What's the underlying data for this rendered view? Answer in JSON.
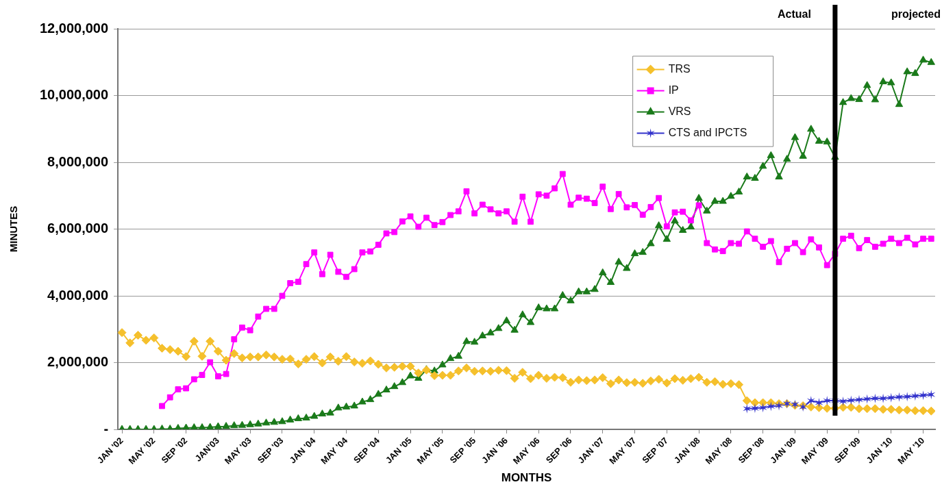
{
  "chart_data": {
    "type": "line",
    "xlabel": "MONTHS",
    "ylabel": "MINUTES",
    "x": [
      "2002-01",
      "2002-02",
      "2002-03",
      "2002-04",
      "2002-05",
      "2002-06",
      "2002-07",
      "2002-08",
      "2002-09",
      "2002-10",
      "2002-11",
      "2002-12",
      "2003-01",
      "2003-02",
      "2003-03",
      "2003-04",
      "2003-05",
      "2003-06",
      "2003-07",
      "2003-08",
      "2003-09",
      "2003-10",
      "2003-11",
      "2003-12",
      "2004-01",
      "2004-02",
      "2004-03",
      "2004-04",
      "2004-05",
      "2004-06",
      "2004-07",
      "2004-08",
      "2004-09",
      "2004-10",
      "2004-11",
      "2004-12",
      "2005-01",
      "2005-02",
      "2005-03",
      "2005-04",
      "2005-05",
      "2005-06",
      "2005-07",
      "2005-08",
      "2005-09",
      "2005-10",
      "2005-11",
      "2005-12",
      "2006-01",
      "2006-02",
      "2006-03",
      "2006-04",
      "2006-05",
      "2006-06",
      "2006-07",
      "2006-08",
      "2006-09",
      "2006-10",
      "2006-11",
      "2006-12",
      "2007-01",
      "2007-02",
      "2007-03",
      "2007-04",
      "2007-05",
      "2007-06",
      "2007-07",
      "2007-08",
      "2007-09",
      "2007-10",
      "2007-11",
      "2007-12",
      "2008-01",
      "2008-02",
      "2008-03",
      "2008-04",
      "2008-05",
      "2008-06",
      "2008-07",
      "2008-08",
      "2008-09",
      "2008-10",
      "2008-11",
      "2008-12",
      "2009-01",
      "2009-02",
      "2009-03",
      "2009-04",
      "2009-05",
      "2009-06",
      "2009-07",
      "2009-08",
      "2009-09",
      "2009-10",
      "2009-11",
      "2009-12",
      "2010-01",
      "2010-02",
      "2010-03",
      "2010-04",
      "2010-05",
      "2010-06"
    ],
    "series": [
      {
        "name": "TRS",
        "color": "#f5c02c",
        "marker": "diamond",
        "values": [
          2900000,
          2590000,
          2820000,
          2670000,
          2740000,
          2430000,
          2390000,
          2340000,
          2180000,
          2640000,
          2190000,
          2640000,
          2340000,
          2070000,
          2270000,
          2140000,
          2170000,
          2170000,
          2230000,
          2170000,
          2100000,
          2110000,
          1960000,
          2100000,
          2180000,
          1990000,
          2170000,
          2040000,
          2180000,
          2020000,
          1980000,
          2050000,
          1950000,
          1840000,
          1860000,
          1890000,
          1890000,
          1690000,
          1780000,
          1610000,
          1620000,
          1620000,
          1750000,
          1840000,
          1740000,
          1750000,
          1740000,
          1770000,
          1760000,
          1530000,
          1710000,
          1520000,
          1620000,
          1530000,
          1560000,
          1550000,
          1410000,
          1480000,
          1460000,
          1480000,
          1550000,
          1370000,
          1480000,
          1400000,
          1410000,
          1380000,
          1450000,
          1500000,
          1390000,
          1520000,
          1470000,
          1520000,
          1560000,
          1410000,
          1430000,
          1350000,
          1370000,
          1340000,
          860000,
          800000,
          800000,
          800000,
          770000,
          770000,
          720000,
          710000,
          670000,
          650000,
          630000,
          630000,
          660000,
          660000,
          620000,
          620000,
          620000,
          600000,
          600000,
          580000,
          580000,
          560000,
          560000,
          550000
        ]
      },
      {
        "name": "IP",
        "color": "#ff00ff",
        "marker": "square",
        "values": [
          null,
          null,
          null,
          null,
          null,
          700000,
          960000,
          1200000,
          1230000,
          1500000,
          1630000,
          2010000,
          1590000,
          1660000,
          2700000,
          3050000,
          2970000,
          3380000,
          3610000,
          3610000,
          4000000,
          4380000,
          4420000,
          4950000,
          5300000,
          4650000,
          5230000,
          4720000,
          4570000,
          4800000,
          5300000,
          5330000,
          5530000,
          5870000,
          5910000,
          6230000,
          6380000,
          6070000,
          6340000,
          6120000,
          6210000,
          6420000,
          6530000,
          7130000,
          6470000,
          6730000,
          6590000,
          6470000,
          6530000,
          6220000,
          6970000,
          6220000,
          7040000,
          7000000,
          7220000,
          7650000,
          6730000,
          6940000,
          6910000,
          6780000,
          7270000,
          6600000,
          7050000,
          6650000,
          6720000,
          6430000,
          6660000,
          6930000,
          6080000,
          6500000,
          6520000,
          6260000,
          6710000,
          5580000,
          5390000,
          5340000,
          5580000,
          5560000,
          5930000,
          5710000,
          5470000,
          5640000,
          5010000,
          5410000,
          5580000,
          5310000,
          5690000,
          5450000,
          4920000,
          5260000,
          5710000,
          5800000,
          5430000,
          5670000,
          5470000,
          5560000,
          5710000,
          5580000,
          5740000,
          5540000,
          5710000,
          5710000
        ]
      },
      {
        "name": "VRS",
        "color": "#1a7a1a",
        "marker": "triangle",
        "values": [
          0,
          0,
          0,
          0,
          0,
          10000,
          10000,
          30000,
          40000,
          50000,
          50000,
          60000,
          80000,
          90000,
          110000,
          120000,
          140000,
          160000,
          190000,
          210000,
          230000,
          280000,
          320000,
          340000,
          390000,
          460000,
          490000,
          640000,
          670000,
          700000,
          820000,
          890000,
          1050000,
          1180000,
          1280000,
          1400000,
          1600000,
          1530000,
          1790000,
          1750000,
          1930000,
          2120000,
          2190000,
          2630000,
          2610000,
          2800000,
          2890000,
          3020000,
          3250000,
          2970000,
          3430000,
          3200000,
          3640000,
          3610000,
          3610000,
          4010000,
          3850000,
          4120000,
          4120000,
          4190000,
          4690000,
          4400000,
          5010000,
          4820000,
          5260000,
          5300000,
          5560000,
          6100000,
          5690000,
          6240000,
          5960000,
          6060000,
          6920000,
          6540000,
          6830000,
          6830000,
          6980000,
          7110000,
          7560000,
          7520000,
          7880000,
          8200000,
          7560000,
          8090000,
          8740000,
          8180000,
          8990000,
          8630000,
          8610000,
          8150000,
          9790000,
          9910000,
          9880000,
          10300000,
          9870000,
          10410000,
          10380000,
          9730000,
          10710000,
          10660000,
          11060000,
          10990000
        ]
      },
      {
        "name": "CTS and IPCTS",
        "color": "#3333cc",
        "marker": "cross",
        "values": [
          null,
          null,
          null,
          null,
          null,
          null,
          null,
          null,
          null,
          null,
          null,
          null,
          null,
          null,
          null,
          null,
          null,
          null,
          null,
          null,
          null,
          null,
          null,
          null,
          null,
          null,
          null,
          null,
          null,
          null,
          null,
          null,
          null,
          null,
          null,
          null,
          null,
          null,
          null,
          null,
          null,
          null,
          null,
          null,
          null,
          null,
          null,
          null,
          null,
          null,
          null,
          null,
          null,
          null,
          null,
          null,
          null,
          null,
          null,
          null,
          null,
          null,
          null,
          null,
          null,
          null,
          null,
          null,
          null,
          null,
          null,
          null,
          null,
          null,
          null,
          null,
          null,
          null,
          620000,
          630000,
          650000,
          690000,
          710000,
          770000,
          750000,
          670000,
          860000,
          800000,
          860000,
          860000,
          840000,
          870000,
          890000,
          910000,
          930000,
          930000,
          950000,
          970000,
          980000,
          1000000,
          1020000,
          1040000
        ]
      }
    ],
    "xlim": [
      "2001-12-16",
      "2010-06-16"
    ],
    "xticks": [
      {
        "value": "2002-01",
        "label": "JAN '02"
      },
      {
        "value": "2002-05",
        "label": "MAY '02"
      },
      {
        "value": "2002-09",
        "label": "SEP '02"
      },
      {
        "value": "2003-01",
        "label": "JAN'03"
      },
      {
        "value": "2003-05",
        "label": "MAY '03"
      },
      {
        "value": "2003-09",
        "label": "SEP '03"
      },
      {
        "value": "2004-01",
        "label": "JAN '04"
      },
      {
        "value": "2004-05",
        "label": "MAY '04"
      },
      {
        "value": "2004-09",
        "label": "SEP '04"
      },
      {
        "value": "2005-01",
        "label": "JAN '05"
      },
      {
        "value": "2005-05",
        "label": "MAY '05"
      },
      {
        "value": "2005-09",
        "label": "SEP '05"
      },
      {
        "value": "2006-01",
        "label": "JAN '06"
      },
      {
        "value": "2006-05",
        "label": "MAY '06"
      },
      {
        "value": "2006-09",
        "label": "SEP '06"
      },
      {
        "value": "2007-01",
        "label": "JAN '07"
      },
      {
        "value": "2007-05",
        "label": "MAY '07"
      },
      {
        "value": "2007-09",
        "label": "SEP '07"
      },
      {
        "value": "2008-01",
        "label": "JAN '08"
      },
      {
        "value": "2008-05",
        "label": "MAY '08"
      },
      {
        "value": "2008-09",
        "label": "SEP '08"
      },
      {
        "value": "2009-01",
        "label": "JAN '09"
      },
      {
        "value": "2009-05",
        "label": "MAY '09"
      },
      {
        "value": "2009-09",
        "label": "SEP '09"
      },
      {
        "value": "2010-01",
        "label": "JAN '10"
      },
      {
        "value": "2010-05",
        "label": "MAY '10"
      }
    ],
    "ylim": [
      0,
      12000000
    ],
    "yticks": [
      {
        "value": 0,
        "label": "-"
      },
      {
        "value": 2000000,
        "label": "2,000,000"
      },
      {
        "value": 4000000,
        "label": "4,000,000"
      },
      {
        "value": 6000000,
        "label": "6,000,000"
      },
      {
        "value": 8000000,
        "label": "8,000,000"
      },
      {
        "value": 10000000,
        "label": "10,000,000"
      },
      {
        "value": 12000000,
        "label": "12,000,000"
      }
    ],
    "ref_lines": [
      {
        "axis": "x",
        "value": "2009-06",
        "color": "#000000"
      }
    ],
    "annotations": [
      "Actual",
      "projected"
    ],
    "grid": "y",
    "legend": "top right",
    "line_style": "solid"
  }
}
